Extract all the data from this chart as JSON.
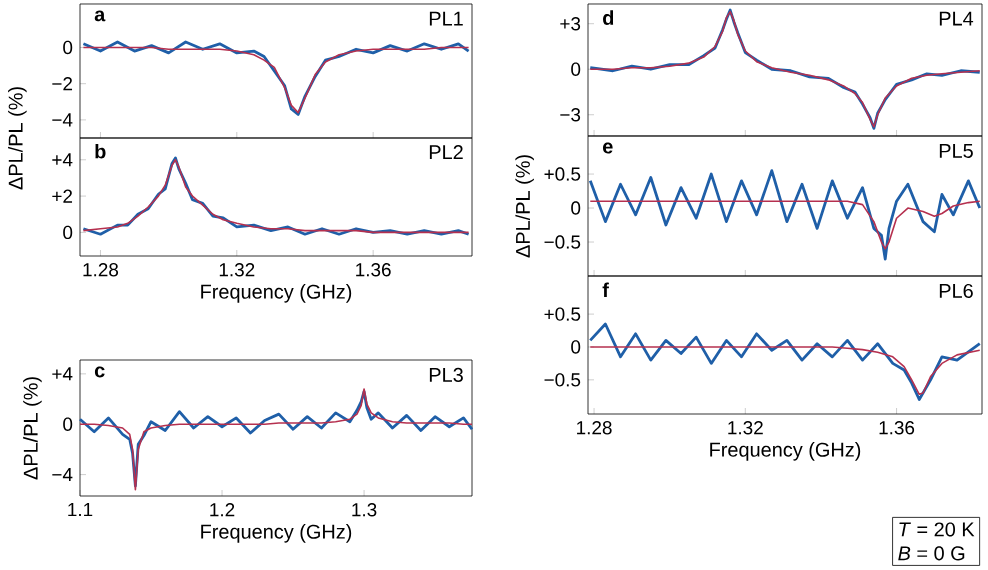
{
  "chart_data": [
    {
      "type": "line",
      "title": "PL1",
      "annotations": [
        "a"
      ],
      "xlim": [
        1.274,
        1.389
      ],
      "ylim": [
        -5,
        2.4
      ],
      "xticks": [
        1.28,
        1.32,
        1.36
      ],
      "yticks": [
        {
          "value": -4,
          "label": "−4"
        },
        {
          "value": -2,
          "label": "−2"
        },
        0
      ],
      "tick_labels": "y",
      "x": [
        1.275,
        1.28,
        1.285,
        1.29,
        1.295,
        1.3,
        1.305,
        1.31,
        1.315,
        1.32,
        1.325,
        1.328,
        1.331,
        1.334,
        1.336,
        1.338,
        1.34,
        1.343,
        1.346,
        1.35,
        1.355,
        1.36,
        1.365,
        1.37,
        1.375,
        1.38,
        1.385,
        1.388
      ],
      "series": [
        {
          "color": "#1f5fa8",
          "values": [
            0.2,
            -0.2,
            0.3,
            -0.2,
            0.1,
            -0.3,
            0.3,
            -0.1,
            0.2,
            -0.3,
            -0.2,
            -0.5,
            -1.3,
            -2.1,
            -3.4,
            -3.7,
            -2.7,
            -1.6,
            -0.7,
            -0.5,
            -0.1,
            -0.3,
            0.1,
            -0.2,
            0.2,
            -0.1,
            0.2,
            -0.2
          ]
        },
        {
          "color": "#b5304f",
          "values": [
            0,
            0,
            0,
            0,
            0,
            -0.1,
            -0.1,
            -0.1,
            -0.1,
            -0.2,
            -0.4,
            -0.7,
            -1.1,
            -2.2,
            -3.2,
            -3.6,
            -2.8,
            -1.5,
            -0.8,
            -0.4,
            -0.2,
            -0.1,
            -0.1,
            -0.1,
            -0.1,
            0,
            0,
            0
          ]
        }
      ]
    },
    {
      "type": "line",
      "title": "PL2",
      "annotations": [
        "b"
      ],
      "xlabel": "Frequency (GHz)",
      "ylabel": "ΔPL/PL (%)",
      "xlim": [
        1.274,
        1.389
      ],
      "ylim": [
        -1.3,
        5.2
      ],
      "xticks": [
        1.28,
        1.32,
        1.36
      ],
      "yticks": [
        0,
        {
          "value": 2,
          "label": "+2"
        },
        {
          "value": 4,
          "label": "+4"
        }
      ],
      "x": [
        1.275,
        1.28,
        1.285,
        1.288,
        1.291,
        1.294,
        1.297,
        1.299,
        1.301,
        1.302,
        1.303,
        1.305,
        1.307,
        1.31,
        1.313,
        1.316,
        1.32,
        1.325,
        1.33,
        1.335,
        1.34,
        1.345,
        1.35,
        1.355,
        1.36,
        1.365,
        1.37,
        1.375,
        1.38,
        1.385,
        1.388
      ],
      "series": [
        {
          "color": "#1f5fa8",
          "values": [
            0.2,
            -0.1,
            0.4,
            0.4,
            1.0,
            1.3,
            2.1,
            2.4,
            3.8,
            4.1,
            3.5,
            2.7,
            1.8,
            1.6,
            0.9,
            0.8,
            0.3,
            0.4,
            0.1,
            0.3,
            -0.1,
            0.2,
            -0.1,
            0.2,
            0.0,
            0.1,
            -0.1,
            0.1,
            -0.1,
            0.1,
            -0.1
          ]
        },
        {
          "color": "#b5304f",
          "values": [
            0.1,
            0.2,
            0.3,
            0.5,
            0.9,
            1.4,
            2.0,
            2.6,
            3.7,
            4.0,
            3.6,
            2.5,
            2.0,
            1.5,
            1.0,
            0.7,
            0.5,
            0.3,
            0.2,
            0.2,
            0.1,
            0.1,
            0.1,
            0.1,
            0,
            0,
            0,
            0,
            0,
            0,
            0
          ]
        }
      ]
    },
    {
      "type": "line",
      "title": "PL3",
      "annotations": [
        "c"
      ],
      "xlabel": "Frequency (GHz)",
      "ylabel": "ΔPL/PL (%)",
      "xlim": [
        1.1,
        1.376
      ],
      "ylim": [
        -5.7,
        5.1
      ],
      "xticks": [
        1.1,
        1.2,
        1.3
      ],
      "yticks": [
        {
          "value": -4,
          "label": "−4"
        },
        0,
        {
          "value": 4,
          "label": "+4"
        }
      ],
      "x": [
        1.1,
        1.11,
        1.12,
        1.13,
        1.135,
        1.137,
        1.139,
        1.141,
        1.145,
        1.15,
        1.16,
        1.17,
        1.18,
        1.19,
        1.2,
        1.21,
        1.22,
        1.23,
        1.24,
        1.25,
        1.26,
        1.27,
        1.28,
        1.29,
        1.295,
        1.298,
        1.3,
        1.302,
        1.305,
        1.31,
        1.32,
        1.33,
        1.34,
        1.35,
        1.36,
        1.37,
        1.376
      ],
      "series": [
        {
          "color": "#1f5fa8",
          "values": [
            0.4,
            -0.6,
            0.5,
            -0.8,
            -1.2,
            -2.3,
            -4.9,
            -1.6,
            -0.9,
            0.2,
            -0.5,
            1.0,
            -0.3,
            0.6,
            -0.2,
            0.5,
            -0.7,
            0.3,
            0.8,
            -0.4,
            0.6,
            -0.3,
            0.9,
            0.2,
            1.1,
            1.8,
            2.6,
            1.3,
            0.4,
            0.9,
            -0.3,
            0.7,
            -0.5,
            0.6,
            -0.2,
            0.5,
            -0.4
          ]
        },
        {
          "color": "#b5304f",
          "values": [
            0,
            0,
            -0.1,
            -0.3,
            -0.8,
            -2.0,
            -5.2,
            -2.0,
            -0.6,
            -0.3,
            -0.1,
            0,
            0,
            0,
            0,
            0,
            0,
            0,
            0.1,
            0.1,
            0.1,
            0.1,
            0.2,
            0.4,
            0.8,
            1.5,
            2.8,
            1.6,
            0.9,
            0.5,
            0.2,
            0.1,
            0.1,
            0.1,
            0.1,
            0,
            0
          ]
        }
      ]
    },
    {
      "type": "line",
      "title": "PL4",
      "annotations": [
        "d"
      ],
      "xlim": [
        1.2784,
        1.3826
      ],
      "ylim": [
        -4.4,
        4.3
      ],
      "xticks": [
        1.28,
        1.32,
        1.36
      ],
      "yticks": [
        {
          "value": -3,
          "label": "−3"
        },
        0,
        {
          "value": 3,
          "label": "+3"
        }
      ],
      "tick_labels": "y",
      "x": [
        1.279,
        1.285,
        1.29,
        1.295,
        1.3,
        1.305,
        1.309,
        1.312,
        1.314,
        1.315,
        1.316,
        1.317,
        1.318,
        1.32,
        1.323,
        1.327,
        1.332,
        1.337,
        1.342,
        1.346,
        1.349,
        1.351,
        1.353,
        1.354,
        1.355,
        1.357,
        1.36,
        1.364,
        1.368,
        1.372,
        1.377,
        1.382
      ],
      "series": [
        {
          "color": "#1f5fa8",
          "values": [
            0.1,
            -0.1,
            0.2,
            0.0,
            0.3,
            0.3,
            0.9,
            1.4,
            2.6,
            3.3,
            3.9,
            3.1,
            2.4,
            1.1,
            0.6,
            0.0,
            -0.1,
            -0.5,
            -0.6,
            -1.2,
            -1.5,
            -2.3,
            -3.2,
            -3.9,
            -2.9,
            -2.0,
            -1.0,
            -0.7,
            -0.3,
            -0.4,
            -0.1,
            -0.2
          ]
        },
        {
          "color": "#b5304f",
          "values": [
            0,
            0,
            0.1,
            0.1,
            0.2,
            0.4,
            0.8,
            1.5,
            2.5,
            3.4,
            3.8,
            3.2,
            2.3,
            1.2,
            0.5,
            0.1,
            -0.2,
            -0.4,
            -0.7,
            -1.1,
            -1.6,
            -2.2,
            -3.3,
            -3.8,
            -3.0,
            -1.9,
            -1.1,
            -0.6,
            -0.4,
            -0.3,
            -0.2,
            -0.1
          ]
        }
      ]
    },
    {
      "type": "line",
      "title": "PL5",
      "annotations": [
        "e"
      ],
      "ylabel": "ΔPL/PL (%)",
      "xlim": [
        1.2784,
        1.3826
      ],
      "ylim": [
        -1.0,
        1.06
      ],
      "xticks": [
        1.28,
        1.32,
        1.36
      ],
      "yticks": [
        {
          "value": -0.5,
          "label": "−0.5"
        },
        0,
        {
          "value": 0.5,
          "label": "+0.5"
        }
      ],
      "tick_labels": "y",
      "x": [
        1.279,
        1.283,
        1.287,
        1.291,
        1.295,
        1.299,
        1.303,
        1.307,
        1.311,
        1.315,
        1.319,
        1.323,
        1.327,
        1.331,
        1.335,
        1.339,
        1.343,
        1.347,
        1.351,
        1.354,
        1.356,
        1.357,
        1.358,
        1.36,
        1.363,
        1.367,
        1.37,
        1.372,
        1.375,
        1.379,
        1.382
      ],
      "series": [
        {
          "color": "#1f5fa8",
          "values": [
            0.4,
            -0.2,
            0.35,
            -0.1,
            0.45,
            -0.25,
            0.3,
            -0.15,
            0.5,
            -0.2,
            0.4,
            -0.1,
            0.55,
            -0.2,
            0.35,
            -0.3,
            0.4,
            -0.15,
            0.3,
            -0.3,
            -0.4,
            -0.75,
            -0.3,
            0.1,
            0.35,
            -0.2,
            -0.35,
            0.2,
            -0.1,
            0.4,
            0.0
          ]
        },
        {
          "color": "#b5304f",
          "values": [
            0.1,
            0.1,
            0.1,
            0.1,
            0.1,
            0.1,
            0.1,
            0.1,
            0.1,
            0.1,
            0.1,
            0.1,
            0.1,
            0.1,
            0.1,
            0.1,
            0.1,
            0.1,
            0.05,
            -0.2,
            -0.5,
            -0.6,
            -0.5,
            -0.15,
            0.0,
            -0.05,
            -0.12,
            -0.08,
            0.03,
            0.08,
            0.1
          ]
        }
      ]
    },
    {
      "type": "line",
      "title": "PL6",
      "annotations": [
        "f",
        "*T* = 20 K",
        "*B* = 0 G"
      ],
      "xlabel": "Frequency (GHz)",
      "xlim": [
        1.2784,
        1.3826
      ],
      "ylim": [
        -1.02,
        1.08
      ],
      "xticks": [
        1.28,
        1.32,
        1.36
      ],
      "yticks": [
        {
          "value": -0.5,
          "label": "−0.5"
        },
        0,
        {
          "value": 0.5,
          "label": "+0.5"
        }
      ],
      "x": [
        1.279,
        1.283,
        1.287,
        1.291,
        1.295,
        1.299,
        1.303,
        1.307,
        1.311,
        1.315,
        1.319,
        1.323,
        1.327,
        1.331,
        1.335,
        1.339,
        1.343,
        1.347,
        1.351,
        1.355,
        1.359,
        1.362,
        1.364,
        1.366,
        1.367,
        1.369,
        1.372,
        1.376,
        1.382
      ],
      "series": [
        {
          "color": "#1f5fa8",
          "values": [
            0.1,
            0.35,
            -0.15,
            0.2,
            -0.2,
            0.1,
            -0.1,
            0.15,
            -0.25,
            0.1,
            -0.15,
            0.2,
            -0.05,
            0.1,
            -0.2,
            0.05,
            -0.15,
            0.1,
            -0.2,
            0.05,
            -0.25,
            -0.35,
            -0.55,
            -0.8,
            -0.7,
            -0.5,
            -0.15,
            -0.2,
            0.05
          ]
        },
        {
          "color": "#b5304f",
          "values": [
            0,
            0,
            0,
            0,
            0,
            0,
            0,
            0,
            0,
            0,
            0,
            0,
            0,
            0,
            0,
            0,
            0,
            -0.02,
            -0.04,
            -0.08,
            -0.15,
            -0.3,
            -0.5,
            -0.72,
            -0.7,
            -0.45,
            -0.25,
            -0.12,
            -0.05
          ]
        }
      ]
    }
  ]
}
